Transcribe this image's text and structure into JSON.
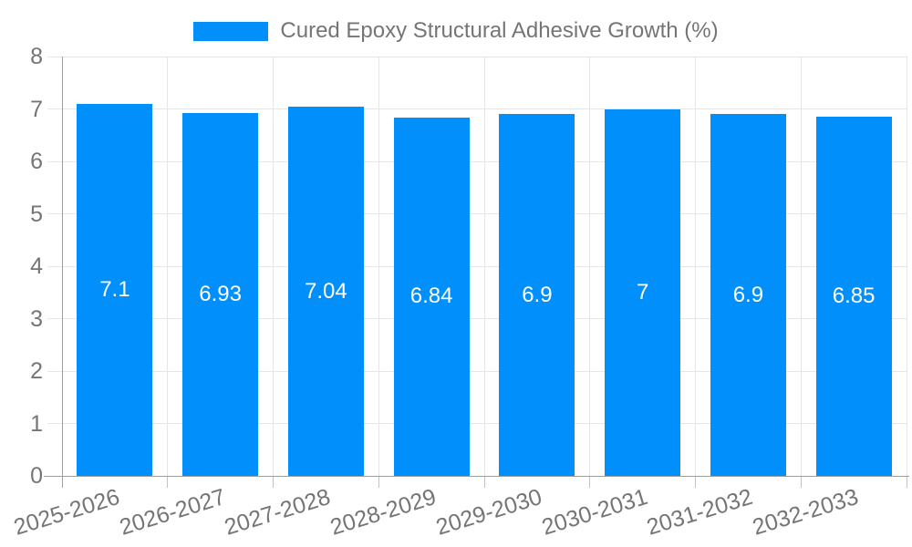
{
  "chart_data": {
    "type": "bar",
    "title": "Cured Epoxy Structural Adhesive Growth (%)",
    "categories": [
      "2025-2026",
      "2026-2027",
      "2027-2028",
      "2028-2029",
      "2029-2030",
      "2030-2031",
      "2031-2032",
      "2032-2033"
    ],
    "values": [
      7.1,
      6.93,
      7.04,
      6.84,
      6.9,
      7,
      6.9,
      6.85
    ],
    "value_labels": [
      "7.1",
      "6.93",
      "7.04",
      "6.84",
      "6.9",
      "7",
      "6.9",
      "6.85"
    ],
    "ylim": [
      0,
      8
    ],
    "yticks": [
      0,
      1,
      2,
      3,
      4,
      5,
      6,
      7,
      8
    ],
    "xlabel": "",
    "ylabel": "",
    "grid": true,
    "legend_position": "top",
    "bar_color": "#008FFB",
    "bar_label_color": "#FFFFFF",
    "axis_text_color": "#757575",
    "grid_color": "#E6E6E6",
    "tick_color": "#C2C2C2",
    "axis_line_color": "#9E9E9E",
    "background_color": "#FFFFFF"
  }
}
